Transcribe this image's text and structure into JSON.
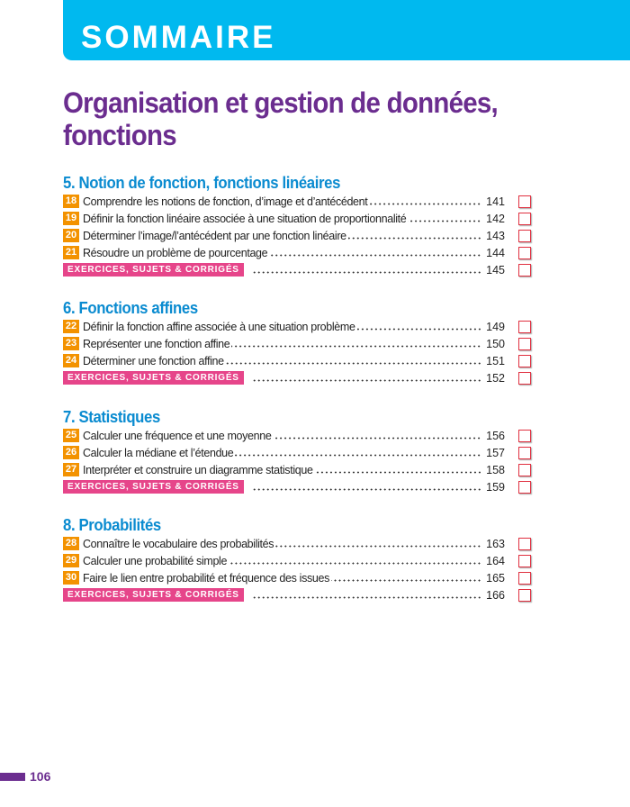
{
  "header": {
    "label": "SOMMAIRE"
  },
  "title": "Organisation et gestion de données, fonctions",
  "exercise_label": "EXERCICES, SUJETS & CORRIGÉS",
  "sections": [
    {
      "heading": "5. Notion de fonction, fonctions linéaires",
      "items": [
        {
          "num": "18",
          "label": "Comprendre les notions de fonction, d’image et d’antécédent",
          "page": "141"
        },
        {
          "num": "19",
          "label": "Définir la fonction linéaire associée à une situation de proportionnalité",
          "page": "142"
        },
        {
          "num": "20",
          "label": "Déterminer l’image/l’antécédent par une fonction linéaire",
          "page": "143"
        },
        {
          "num": "21",
          "label": "Résoudre un problème de pourcentage",
          "page": "144"
        }
      ],
      "exercise_page": "145"
    },
    {
      "heading": "6. Fonctions affines",
      "items": [
        {
          "num": "22",
          "label": "Définir la fonction affine associée à une situation problème",
          "page": "149"
        },
        {
          "num": "23",
          "label": "Représenter une fonction affine",
          "page": "150"
        },
        {
          "num": "24",
          "label": "Déterminer une fonction affine",
          "page": "151"
        }
      ],
      "exercise_page": "152"
    },
    {
      "heading": "7. Statistiques",
      "items": [
        {
          "num": "25",
          "label": "Calculer une fréquence et une moyenne",
          "page": "156"
        },
        {
          "num": "26",
          "label": "Calculer la médiane et l’étendue",
          "page": "157"
        },
        {
          "num": "27",
          "label": "Interpréter et construire un diagramme statistique",
          "page": "158"
        }
      ],
      "exercise_page": "159"
    },
    {
      "heading": "8. Probabilités",
      "items": [
        {
          "num": "28",
          "label": "Connaître le vocabulaire des probabilités",
          "page": "163"
        },
        {
          "num": "29",
          "label": "Calculer une probabilité simple",
          "page": "164"
        },
        {
          "num": "30",
          "label": "Faire le lien entre probabilité et fréquence des issues",
          "page": "165"
        }
      ],
      "exercise_page": "166"
    }
  ],
  "page_number": "106",
  "colors": {
    "header": "#00b9ef",
    "title": "#6b2d8f",
    "section": "#0a8bd0",
    "badge": "#f39200",
    "exercise": "#e6458a",
    "checkbox": "#e03040"
  }
}
